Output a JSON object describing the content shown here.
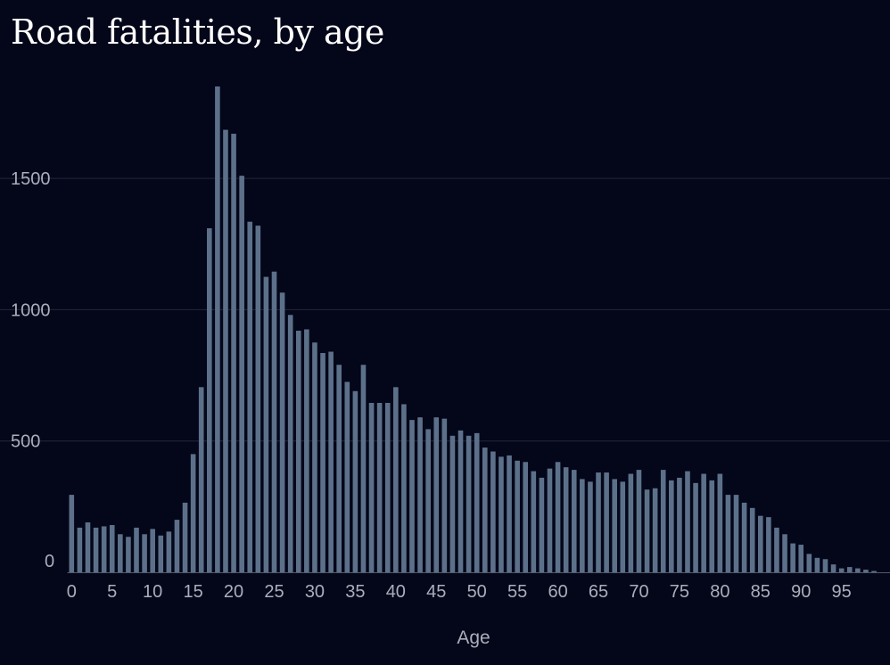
{
  "chart_data": {
    "type": "bar",
    "title": "Road fatalities, by age",
    "xlabel": "Age",
    "ylabel": "",
    "x": [
      0,
      1,
      2,
      3,
      4,
      5,
      6,
      7,
      8,
      9,
      10,
      11,
      12,
      13,
      14,
      15,
      16,
      17,
      18,
      19,
      20,
      21,
      22,
      23,
      24,
      25,
      26,
      27,
      28,
      29,
      30,
      31,
      32,
      33,
      34,
      35,
      36,
      37,
      38,
      39,
      40,
      41,
      42,
      43,
      44,
      45,
      46,
      47,
      48,
      49,
      50,
      51,
      52,
      53,
      54,
      55,
      56,
      57,
      58,
      59,
      60,
      61,
      62,
      63,
      64,
      65,
      66,
      67,
      68,
      69,
      70,
      71,
      72,
      73,
      74,
      75,
      76,
      77,
      78,
      79,
      80,
      81,
      82,
      83,
      84,
      85,
      86,
      87,
      88,
      89,
      90,
      91,
      92,
      93,
      94,
      95,
      96,
      97,
      98,
      99
    ],
    "values": [
      295,
      170,
      190,
      170,
      175,
      180,
      145,
      135,
      170,
      145,
      165,
      140,
      155,
      200,
      265,
      450,
      705,
      1310,
      1850,
      1685,
      1670,
      1510,
      1335,
      1320,
      1125,
      1145,
      1065,
      980,
      920,
      925,
      875,
      835,
      840,
      790,
      725,
      690,
      790,
      645,
      645,
      645,
      705,
      640,
      580,
      590,
      545,
      590,
      585,
      520,
      540,
      520,
      530,
      475,
      460,
      440,
      445,
      425,
      420,
      385,
      360,
      395,
      420,
      400,
      390,
      355,
      345,
      380,
      380,
      355,
      345,
      375,
      390,
      315,
      320,
      390,
      350,
      360,
      385,
      340,
      375,
      350,
      375,
      295,
      295,
      265,
      245,
      215,
      210,
      170,
      145,
      110,
      105,
      70,
      55,
      50,
      30,
      15,
      20,
      15,
      10,
      5
    ],
    "x_ticks": [
      0,
      5,
      10,
      15,
      20,
      25,
      30,
      35,
      40,
      45,
      50,
      55,
      60,
      65,
      70,
      75,
      80,
      85,
      90,
      95
    ],
    "y_ticks": [
      0,
      500,
      1000,
      1500
    ],
    "ylim": [
      0,
      1850
    ],
    "grid": true,
    "colors": {
      "background": "#04061a",
      "bar": "#5c7189",
      "grid": "#23273a",
      "axis": "#525a68",
      "tick_text": "#a9afbb",
      "title_text": "#ffffff"
    }
  }
}
